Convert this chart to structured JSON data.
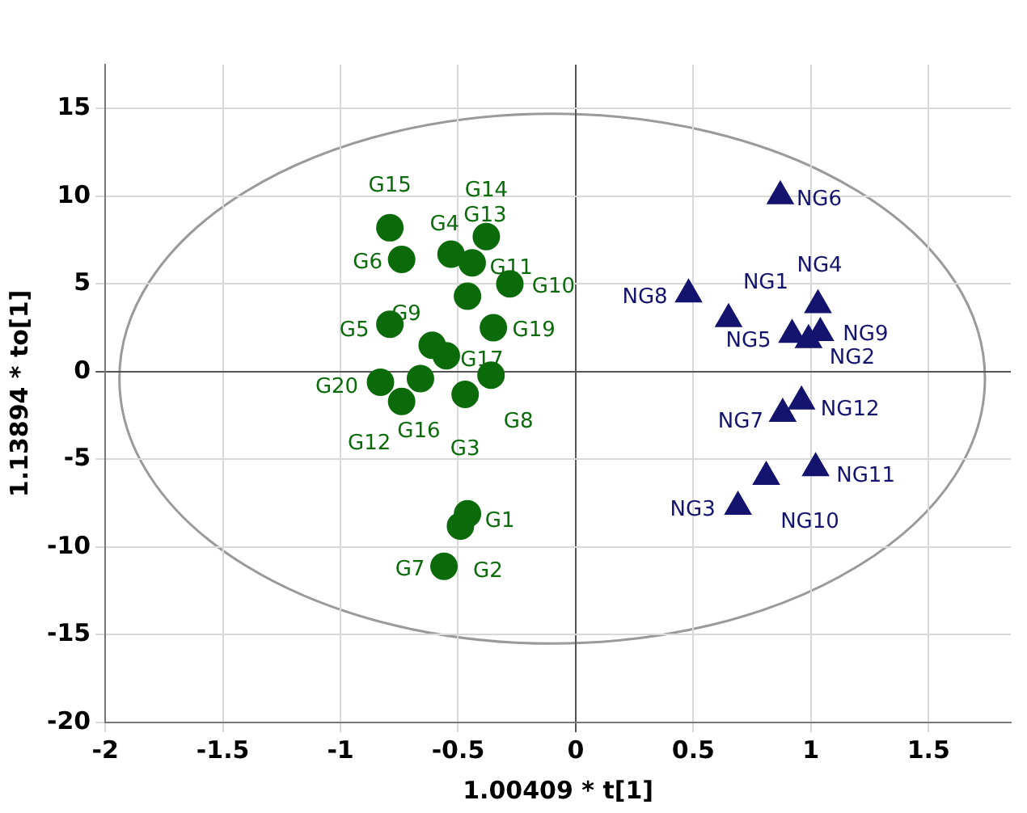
{
  "chart_data": {
    "type": "scatter",
    "xlabel": "1.00409 * t[1]",
    "ylabel": "1.13894 * to[1]",
    "xlim": [
      -2,
      1.85
    ],
    "ylim": [
      -20,
      17.5
    ],
    "xticks": [
      -2,
      -1.5,
      -1,
      -0.5,
      0,
      0.5,
      1,
      1.5
    ],
    "yticks": [
      -20,
      -15,
      -10,
      -5,
      0,
      5,
      10,
      15
    ],
    "grid": true,
    "legend": false,
    "series": [
      {
        "color": "#0b6b0b",
        "marker": "circle",
        "x": [
          -0.79,
          -0.74,
          -0.53,
          -0.38,
          -0.44,
          -0.28,
          -0.46,
          -0.79,
          -0.61,
          -0.35,
          -0.55,
          -0.83,
          -0.74,
          -0.66,
          -0.36,
          -0.47,
          -0.46,
          -0.49,
          -0.56
        ],
        "values": [
          8.2,
          6.4,
          6.7,
          7.7,
          6.2,
          5.0,
          4.3,
          2.7,
          1.5,
          2.5,
          0.9,
          -0.6,
          -1.7,
          -0.4,
          -0.2,
          -1.3,
          -8.1,
          -8.8,
          -11.1
        ],
        "value_labels": [
          "G15",
          "G6",
          "G4",
          "G14",
          "G13",
          "G10",
          "G11",
          "G5",
          "G9",
          "G19",
          "G17",
          "G20",
          "G12",
          "G16",
          "G8",
          "G3",
          "G1",
          "G2",
          "G7"
        ]
      },
      {
        "color": "#14146e",
        "marker": "triangle",
        "x": [
          0.87,
          0.48,
          0.65,
          1.03,
          0.92,
          1.04,
          0.99,
          0.96,
          0.88,
          1.02,
          0.81,
          0.69
        ],
        "values": [
          10.0,
          4.4,
          3.0,
          3.8,
          2.1,
          2.2,
          1.8,
          -1.7,
          -2.4,
          -5.5,
          -6.0,
          -7.7
        ],
        "value_labels": [
          "NG6",
          "NG8",
          "NG1",
          "NG4",
          "NG5",
          "NG9",
          "NG2",
          "NG12",
          "NG7",
          "NG11",
          "NG10",
          "NG3"
        ]
      }
    ]
  }
}
